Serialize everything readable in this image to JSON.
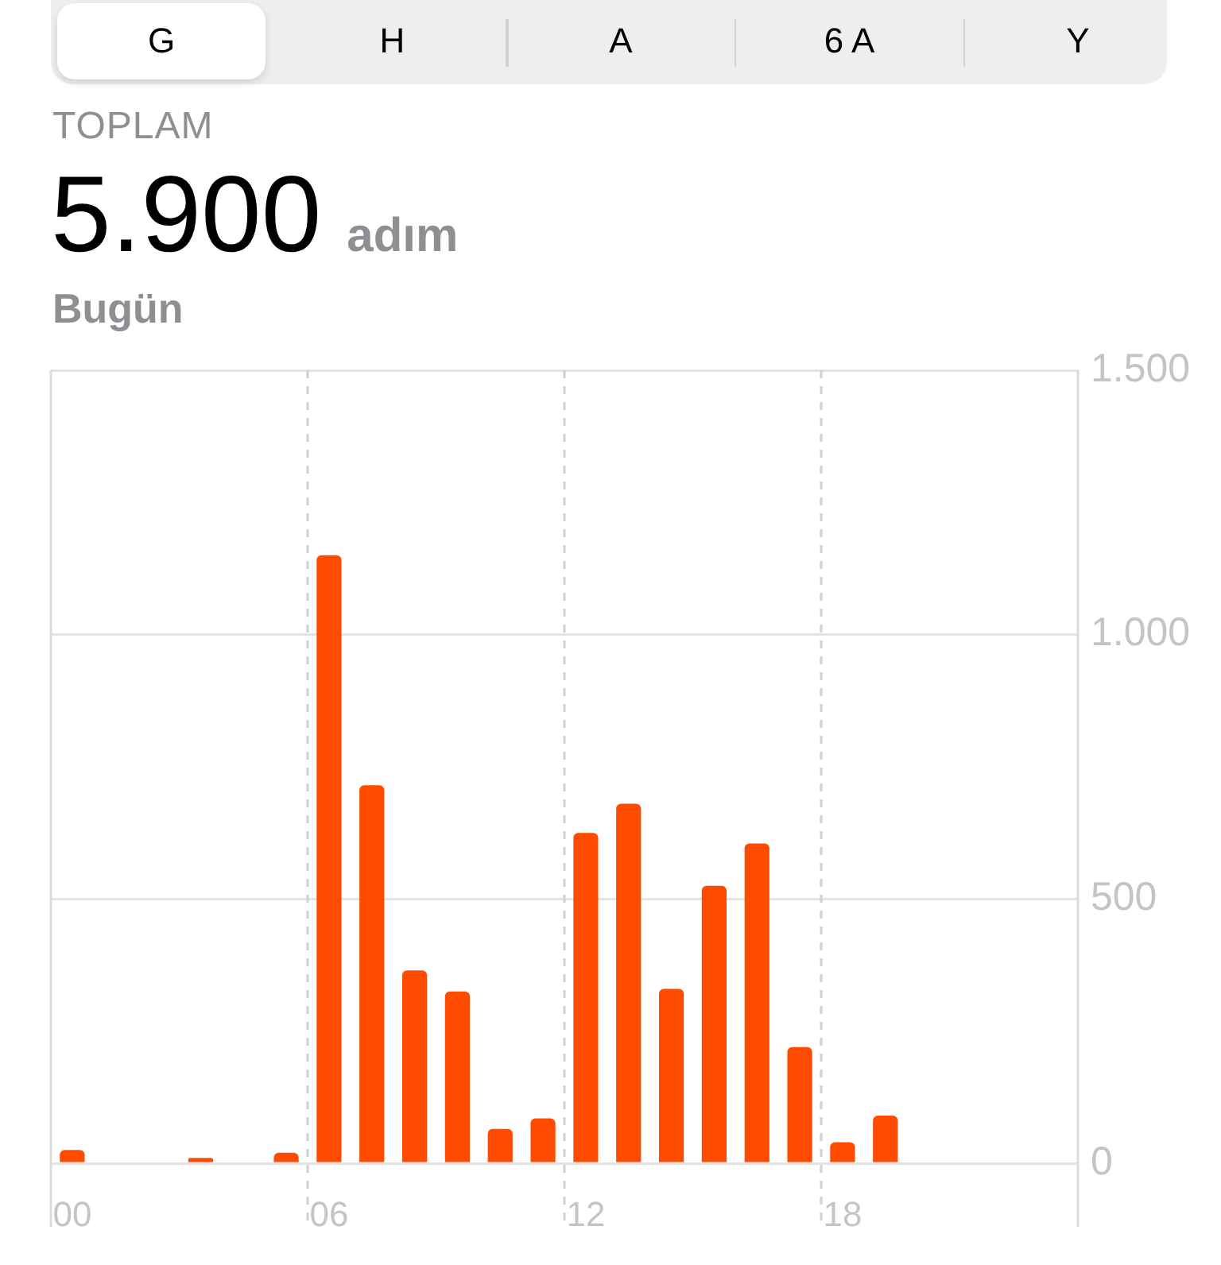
{
  "chart_data": {
    "type": "bar",
    "title": "5.900 adım",
    "subtitle": "Bugün",
    "annotations": [
      "G",
      "H",
      "A",
      "6 A",
      "Y",
      "TOPLAM"
    ],
    "categories": [
      "00",
      null,
      null,
      null,
      null,
      null,
      "06",
      null,
      null,
      null,
      null,
      null,
      "12",
      null,
      null,
      null,
      null,
      null,
      "18",
      null,
      null,
      null,
      null,
      null
    ],
    "values": [
      25,
      null,
      null,
      10,
      null,
      20,
      1150,
      715,
      365,
      325,
      65,
      85,
      625,
      680,
      330,
      525,
      605,
      220,
      40,
      90,
      null,
      null,
      null,
      null
    ],
    "color": "#ff4b00",
    "ylim": [
      0,
      1500
    ],
    "yticks": [
      0,
      500,
      {
        "value": 1000,
        "label": "1.000"
      },
      {
        "value": 1500,
        "label": "1.500"
      }
    ],
    "grid": true
  }
}
